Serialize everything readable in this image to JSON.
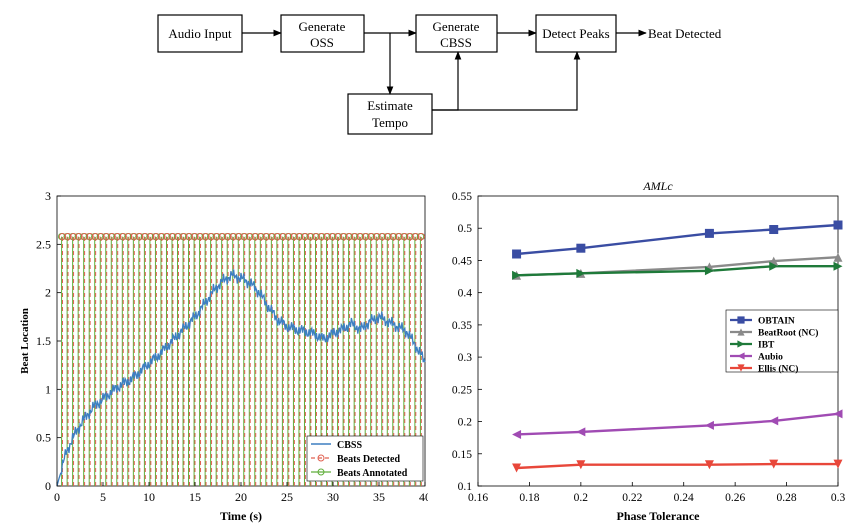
{
  "diagram": {
    "nodes": {
      "audio_input": "Audio Input",
      "generate_oss": [
        "Generate",
        "OSS"
      ],
      "generate_cbss": [
        "Generate",
        "CBSS"
      ],
      "detect_peaks": "Detect Peaks",
      "estimate_tempo": [
        "Estimate",
        "Tempo"
      ]
    },
    "output_label": "Beat Detected"
  },
  "chart_data": [
    {
      "type": "line",
      "title": "",
      "xlabel": "Time (s)",
      "ylabel": "Beat Location",
      "xlim": [
        0,
        40
      ],
      "ylim": [
        0,
        3
      ],
      "xticks": [
        "0",
        "5",
        "10",
        "15",
        "20",
        "25",
        "30",
        "35",
        "40"
      ],
      "yticks": [
        "0",
        "0.5",
        "1",
        "1.5",
        "2",
        "2.5",
        "3"
      ],
      "grid": false,
      "legend_position": "bottom-right",
      "series": [
        {
          "name": "CBSS",
          "color": "#3d7fc1",
          "style": "solid",
          "x": [
            0,
            1,
            2,
            3,
            4,
            5,
            6,
            7,
            8,
            9,
            10,
            11,
            12,
            13,
            14,
            15,
            16,
            17,
            18,
            19,
            20,
            21,
            22,
            23,
            24,
            25,
            26,
            27,
            28,
            29,
            30,
            31,
            32,
            33,
            34,
            35,
            36,
            37,
            38,
            39,
            40
          ],
          "y": [
            0.0,
            0.35,
            0.55,
            0.7,
            0.82,
            0.9,
            0.98,
            1.05,
            1.1,
            1.18,
            1.27,
            1.35,
            1.45,
            1.55,
            1.65,
            1.75,
            1.88,
            2.02,
            2.12,
            2.18,
            2.15,
            2.1,
            2.0,
            1.85,
            1.72,
            1.65,
            1.62,
            1.6,
            1.57,
            1.52,
            1.58,
            1.62,
            1.68,
            1.62,
            1.7,
            1.75,
            1.7,
            1.65,
            1.6,
            1.45,
            1.28
          ]
        },
        {
          "name": "Beats Detected",
          "color": "#e06050",
          "style": "dashed",
          "marker": "circle",
          "marker_y": 2.58,
          "x": [
            0.6,
            1.2,
            1.8,
            2.4,
            3.0,
            3.6,
            4.2,
            4.8,
            5.4,
            6.0,
            6.6,
            7.2,
            7.8,
            8.4,
            9.0,
            9.6,
            10.2,
            10.8,
            11.4,
            12.0,
            12.6,
            13.2,
            13.8,
            14.4,
            15.0,
            15.6,
            16.2,
            16.8,
            17.4,
            18.0,
            18.6,
            19.2,
            19.8,
            20.4,
            21.0,
            21.6,
            22.2,
            22.8,
            23.4,
            24.0,
            24.6,
            25.2,
            25.8,
            26.4,
            27.0,
            27.6,
            28.2,
            28.8,
            29.4,
            30.0,
            30.6,
            31.2,
            31.8,
            32.4,
            33.0,
            33.6,
            34.2,
            34.8,
            35.4,
            36.0,
            36.6,
            37.2,
            37.8,
            38.4,
            39.0,
            39.6
          ]
        },
        {
          "name": "Beats Annotated",
          "color": "#5fae3a",
          "style": "solid",
          "marker": "circle",
          "marker_y": 2.58,
          "x": [
            0.5,
            1.1,
            1.7,
            2.3,
            2.9,
            3.5,
            4.1,
            4.7,
            5.3,
            5.9,
            6.5,
            7.1,
            7.7,
            8.3,
            8.9,
            9.5,
            10.1,
            10.7,
            11.3,
            11.9,
            12.5,
            13.1,
            13.7,
            14.3,
            14.9,
            15.5,
            16.1,
            16.7,
            17.3,
            17.9,
            18.5,
            19.1,
            19.7,
            20.3,
            20.9,
            21.5,
            22.1,
            22.7,
            23.3,
            23.9,
            24.5,
            25.1,
            25.7,
            26.3,
            26.9,
            27.5,
            28.1,
            28.7,
            29.3,
            29.9,
            30.5,
            31.1,
            31.7,
            32.3,
            32.9,
            33.5,
            34.1,
            34.7,
            35.3,
            35.9,
            36.5,
            37.1,
            37.7,
            38.3,
            38.9,
            39.5
          ]
        }
      ]
    },
    {
      "type": "line",
      "title": "AMLc",
      "xlabel": "Phase Tolerance",
      "ylabel": "",
      "xlim": [
        0.16,
        0.3
      ],
      "ylim": [
        0.1,
        0.55
      ],
      "xticks": [
        "0.16",
        "0.18",
        "0.2",
        "0.22",
        "0.24",
        "0.26",
        "0.28",
        "0.3"
      ],
      "yticks": [
        "0.1",
        "0.15",
        "0.2",
        "0.25",
        "0.3",
        "0.35",
        "0.4",
        "0.45",
        "0.5",
        "0.55"
      ],
      "grid": false,
      "legend_position": "right",
      "x": [
        0.175,
        0.2,
        0.25,
        0.275,
        0.3
      ],
      "series": [
        {
          "name": "OBTAIN",
          "color": "#3a4da3",
          "marker": "square",
          "values": [
            0.46,
            0.469,
            0.492,
            0.498,
            0.505
          ]
        },
        {
          "name": "BeatRoot (NC)",
          "color": "#8a8a8a",
          "marker": "triangle-up",
          "values": [
            0.427,
            0.43,
            0.44,
            0.449,
            0.455
          ]
        },
        {
          "name": "IBT",
          "color": "#1f7a3a",
          "marker": "triangle-right",
          "values": [
            0.427,
            0.43,
            0.434,
            0.441,
            0.441
          ]
        },
        {
          "name": "Aubio",
          "color": "#a04bb3",
          "marker": "triangle-left",
          "values": [
            0.18,
            0.184,
            0.194,
            0.201,
            0.212
          ]
        },
        {
          "name": "Ellis (NC)",
          "color": "#e8473a",
          "marker": "triangle-down",
          "values": [
            0.128,
            0.133,
            0.133,
            0.134,
            0.134
          ]
        }
      ]
    }
  ]
}
